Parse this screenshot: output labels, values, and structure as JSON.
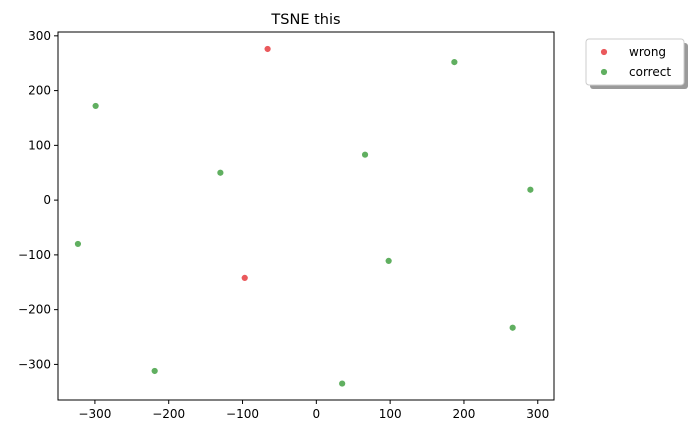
{
  "chart_data": {
    "type": "scatter",
    "title": "TSNE this",
    "xlabel": "",
    "ylabel": "",
    "xlim": [
      -350,
      322
    ],
    "ylim": [
      -365,
      307
    ],
    "xticks": [
      -300,
      -200,
      -100,
      0,
      100,
      200,
      300
    ],
    "yticks": [
      300,
      200,
      100,
      0,
      -100,
      -200,
      -300
    ],
    "xtick_labels": [
      "−300",
      "−200",
      "−100",
      "0",
      "100",
      "200",
      "300"
    ],
    "ytick_labels": [
      "300",
      "200",
      "100",
      "0",
      "−100",
      "−200",
      "−300"
    ],
    "grid": false,
    "legend_position": "outside top-right",
    "series": [
      {
        "name": "wrong",
        "color": "#e8474a",
        "points": [
          {
            "x": -66,
            "y": 276
          },
          {
            "x": -97,
            "y": -142
          }
        ]
      },
      {
        "name": "correct",
        "color": "#4fa64f",
        "points": [
          {
            "x": -299,
            "y": 172
          },
          {
            "x": -130,
            "y": 50
          },
          {
            "x": 66,
            "y": 83
          },
          {
            "x": 187,
            "y": 252
          },
          {
            "x": 290,
            "y": 19
          },
          {
            "x": -323,
            "y": -80
          },
          {
            "x": 98,
            "y": -111
          },
          {
            "x": 266,
            "y": -233
          },
          {
            "x": -219,
            "y": -312
          },
          {
            "x": 35,
            "y": -335
          }
        ]
      }
    ]
  }
}
